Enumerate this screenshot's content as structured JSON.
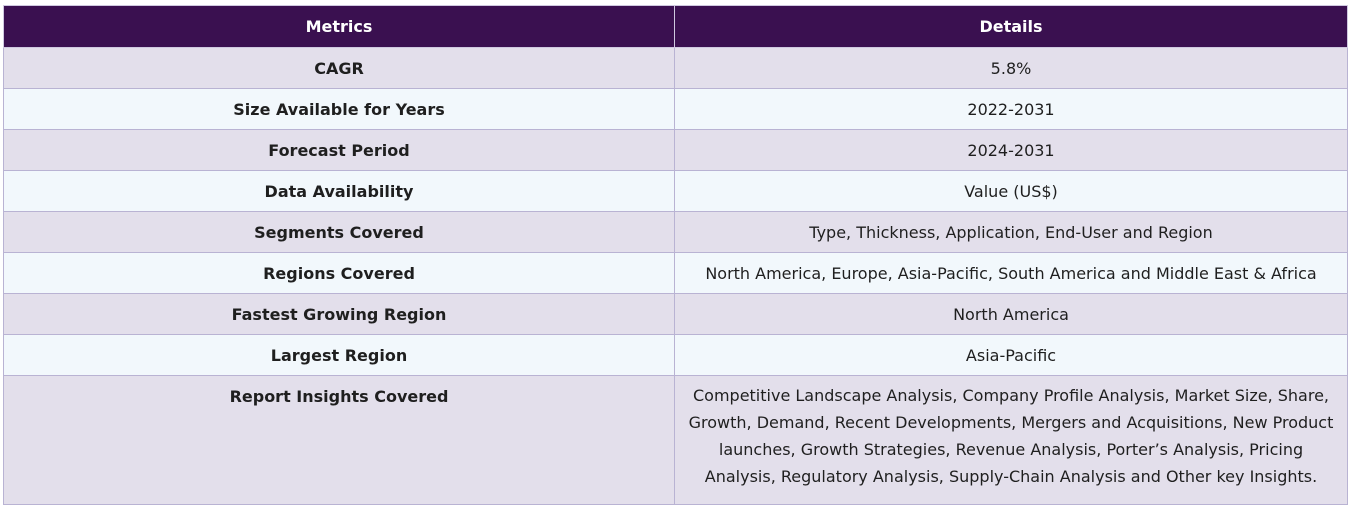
{
  "table": {
    "headers": [
      "Metrics",
      "Details"
    ],
    "rows": [
      {
        "metric": "CAGR",
        "detail": "5.8%"
      },
      {
        "metric": "Size Available for Years",
        "detail": "2022-2031"
      },
      {
        "metric": "Forecast Period",
        "detail": "2024-2031"
      },
      {
        "metric": "Data Availability",
        "detail": "Value (US$)"
      },
      {
        "metric": "Segments Covered",
        "detail": "Type, Thickness, Application, End-User and Region"
      },
      {
        "metric": "Regions Covered",
        "detail": "North America, Europe, Asia-Pacific, South America and Middle East & Africa"
      },
      {
        "metric": "Fastest Growing Region",
        "detail": "North America"
      },
      {
        "metric": "Largest Region",
        "detail": "Asia-Pacific"
      },
      {
        "metric": "Report Insights Covered",
        "detail": "Competitive Landscape Analysis, Company Profile Analysis, Market Size, Share, Growth, Demand, Recent Developments, Mergers and Acquisitions, New Product launches, Growth Strategies, Revenue Analysis, Porter’s Analysis, Pricing Analysis, Regulatory Analysis, Supply-Chain Analysis and Other key Insights."
      }
    ]
  },
  "colors": {
    "header_bg": "#3a1050",
    "row_odd_bg": "#e3dfeb",
    "row_even_bg": "#f2f8fc",
    "border": "#b9b3d3"
  }
}
